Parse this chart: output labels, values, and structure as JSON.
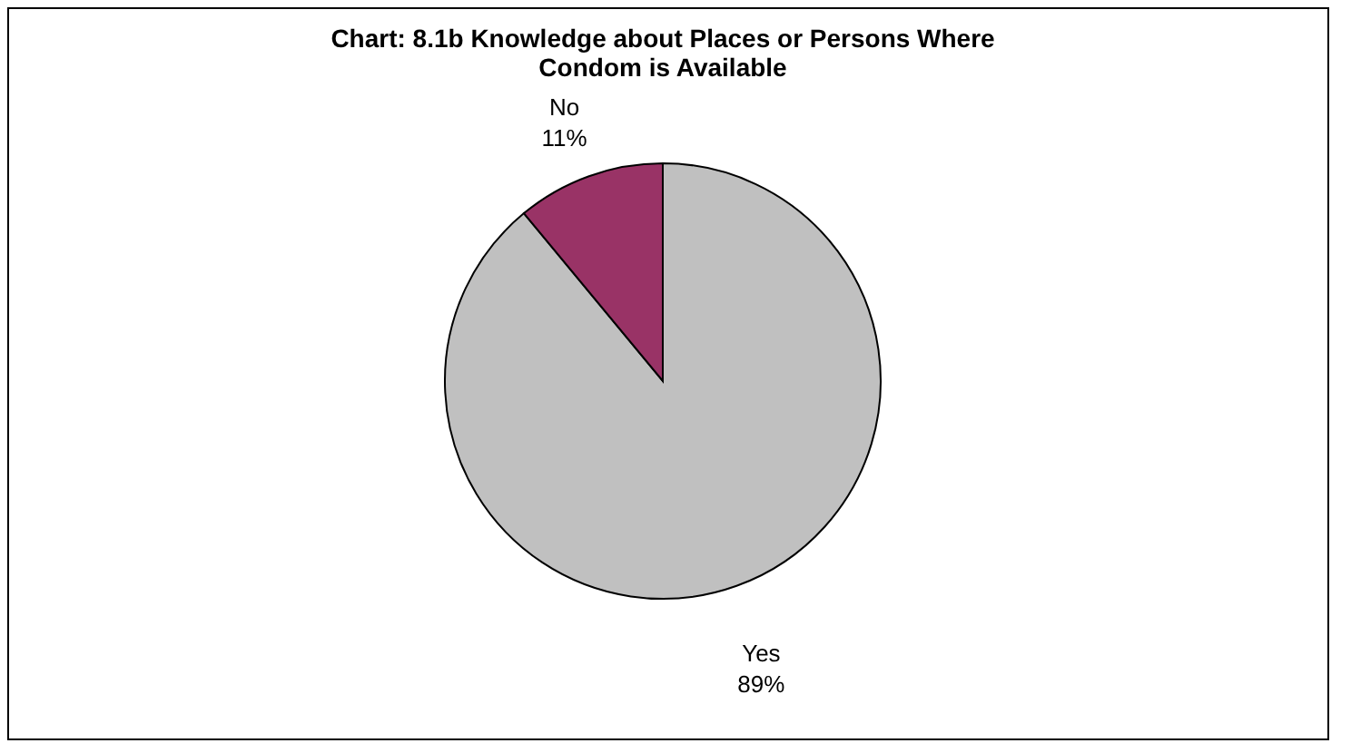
{
  "chart_data": {
    "type": "pie",
    "title": "Chart: 8.1b Knowledge about Places or Persons Where Condom is Available",
    "categories": [
      "Yes",
      "No"
    ],
    "values": [
      89,
      11
    ],
    "colors": [
      "#c0c0c0",
      "#993366"
    ],
    "value_labels": [
      "89%",
      "11%"
    ]
  }
}
